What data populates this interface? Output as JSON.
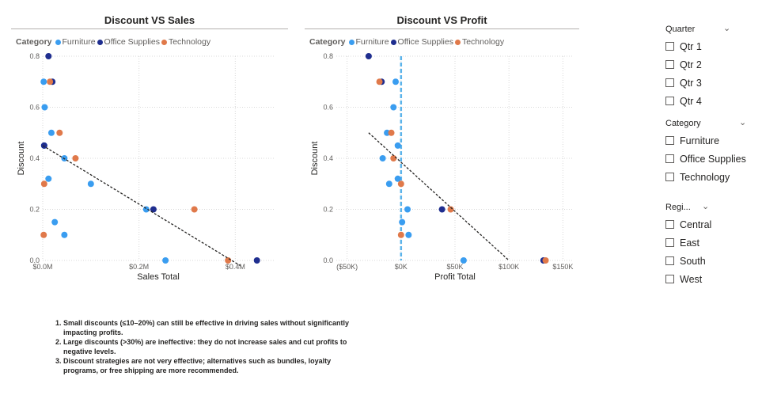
{
  "legend": {
    "title": "Category",
    "items": [
      {
        "label": "Furniture",
        "color": "#3a9df0"
      },
      {
        "label": "Office Supplies",
        "color": "#1f2e8f"
      },
      {
        "label": "Technology",
        "color": "#e0794a"
      }
    ]
  },
  "chart_data": [
    {
      "type": "scatter",
      "title": "Discount VS Sales",
      "xlabel": "Sales Total",
      "ylabel": "Discount",
      "xlim": [
        0,
        480000
      ],
      "ylim": [
        0,
        0.8
      ],
      "x_ticks": [
        0,
        200000,
        400000
      ],
      "x_tick_labels": [
        "$0.0M",
        "$0.2M",
        "$0.4M"
      ],
      "y_ticks": [
        0,
        0.2,
        0.4,
        0.6,
        0.8
      ],
      "y_tick_labels": [
        "0.0",
        "0.2",
        "0.4",
        "0.6",
        "0.8"
      ],
      "grid": true,
      "legend_position": "top-left",
      "series": [
        {
          "name": "Furniture",
          "points": [
            [
              2000,
              0.7
            ],
            [
              4000,
              0.6
            ],
            [
              18000,
              0.5
            ],
            [
              3000,
              0.45
            ],
            [
              45000,
              0.4
            ],
            [
              12000,
              0.32
            ],
            [
              100000,
              0.3
            ],
            [
              25000,
              0.15
            ],
            [
              45000,
              0.1
            ],
            [
              215000,
              0.2
            ],
            [
              255000,
              0.0
            ]
          ]
        },
        {
          "name": "Office Supplies",
          "points": [
            [
              12000,
              0.8
            ],
            [
              20000,
              0.7
            ],
            [
              3000,
              0.45
            ],
            [
              230000,
              0.2
            ],
            [
              445000,
              0.0
            ]
          ]
        },
        {
          "name": "Technology",
          "points": [
            [
              15000,
              0.7
            ],
            [
              35000,
              0.5
            ],
            [
              68000,
              0.4
            ],
            [
              3000,
              0.3
            ],
            [
              2000,
              0.1
            ],
            [
              315000,
              0.2
            ],
            [
              385000,
              0.0
            ]
          ]
        }
      ],
      "trend_line": {
        "x": [
          0,
          410000
        ],
        "y": [
          0.45,
          -0.02
        ]
      }
    },
    {
      "type": "scatter",
      "title": "Discount VS Profit",
      "xlabel": "Profit Total",
      "ylabel": "Discount",
      "xlim": [
        -60000,
        160000
      ],
      "ylim": [
        0,
        0.8
      ],
      "x_ticks": [
        -50000,
        0,
        50000,
        100000,
        150000
      ],
      "x_tick_labels": [
        "($50K)",
        "$0K",
        "$50K",
        "$100K",
        "$150K"
      ],
      "y_ticks": [
        0,
        0.2,
        0.4,
        0.6,
        0.8
      ],
      "y_tick_labels": [
        "0.0",
        "0.2",
        "0.4",
        "0.6",
        "0.8"
      ],
      "grid": true,
      "legend_position": "top-left",
      "series": [
        {
          "name": "Furniture",
          "points": [
            [
              -5000,
              0.7
            ],
            [
              -7000,
              0.6
            ],
            [
              -13000,
              0.5
            ],
            [
              -3000,
              0.45
            ],
            [
              -17000,
              0.4
            ],
            [
              -3000,
              0.32
            ],
            [
              -11000,
              0.3
            ],
            [
              6000,
              0.2
            ],
            [
              1000,
              0.15
            ],
            [
              7000,
              0.1
            ],
            [
              58000,
              0.0
            ]
          ]
        },
        {
          "name": "Office Supplies",
          "points": [
            [
              -30000,
              0.8
            ],
            [
              -18000,
              0.7
            ],
            [
              38000,
              0.2
            ],
            [
              132000,
              0.0
            ]
          ]
        },
        {
          "name": "Technology",
          "points": [
            [
              -20000,
              0.7
            ],
            [
              -9000,
              0.5
            ],
            [
              -7000,
              0.4
            ],
            [
              0,
              0.3
            ],
            [
              46000,
              0.2
            ],
            [
              0,
              0.1
            ],
            [
              134000,
              0.0
            ]
          ]
        }
      ],
      "trend_line": {
        "x": [
          -30000,
          100000
        ],
        "y": [
          0.5,
          0.0
        ]
      },
      "reference_line": {
        "x": 0
      }
    }
  ],
  "slicers": [
    {
      "title": "Quarter",
      "items": [
        "Qtr 1",
        "Qtr 2",
        "Qtr 3",
        "Qtr 4"
      ]
    },
    {
      "title": "Category",
      "items": [
        "Furniture",
        "Office Supplies",
        "Technology"
      ]
    },
    {
      "title": "Regi...",
      "items": [
        "Central",
        "East",
        "South",
        "West"
      ]
    }
  ],
  "notes": [
    "Small discounts (≤10–20%) can still be effective in driving sales without significantly impacting profits.",
    "Large discounts (>30%) are ineffective: they do not increase sales and cut profits to negative levels.",
    "Discount strategies are not very effective; alternatives such as bundles, loyalty programs, or free shipping are more recommended."
  ]
}
